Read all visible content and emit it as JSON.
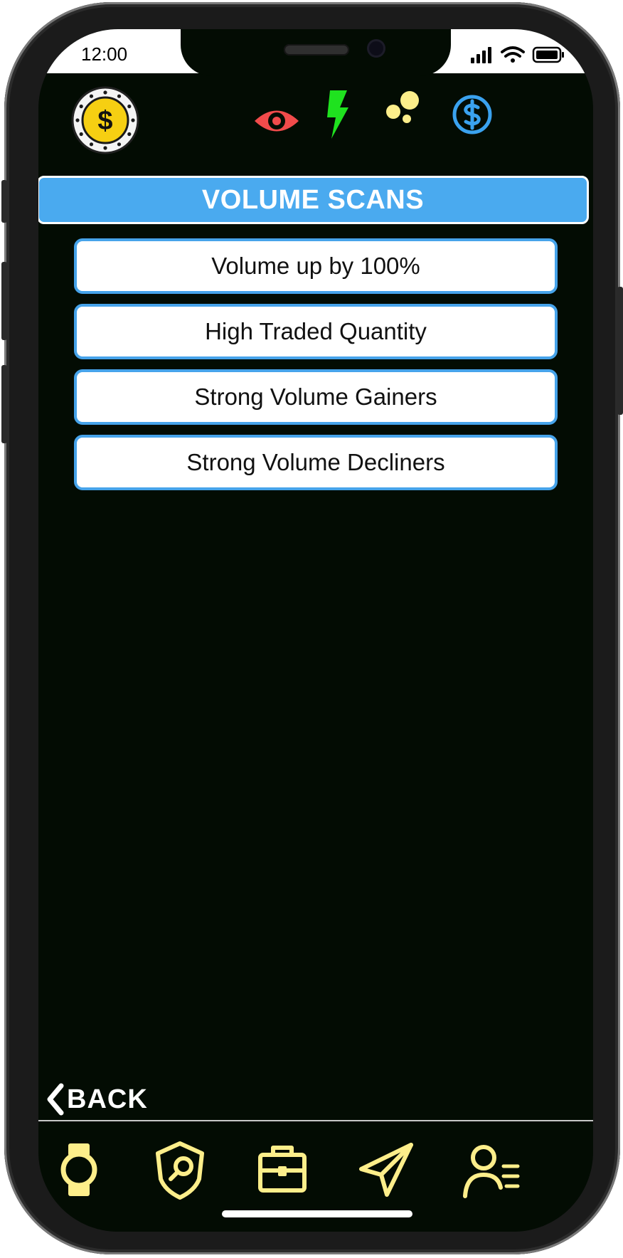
{
  "status_bar": {
    "time": "12:00"
  },
  "header_icons": [
    {
      "name": "coin-logo-icon"
    },
    {
      "name": "eye-icon",
      "color": "#f14b4b"
    },
    {
      "name": "lightning-icon",
      "color": "#1fe21f"
    },
    {
      "name": "bubbles-icon",
      "color": "#fdee8a"
    },
    {
      "name": "dollar-circle-icon",
      "color": "#3aa2ef"
    }
  ],
  "section": {
    "title": "VOLUME SCANS"
  },
  "scans": [
    {
      "label": "Volume up by 100%"
    },
    {
      "label": "High Traded Quantity"
    },
    {
      "label": "Strong Volume Gainers"
    },
    {
      "label": "Strong Volume Decliners"
    }
  ],
  "back": {
    "label": "BACK"
  },
  "bottom_nav": [
    {
      "name": "watch-icon"
    },
    {
      "name": "shield-search-icon"
    },
    {
      "name": "briefcase-icon"
    },
    {
      "name": "send-icon"
    },
    {
      "name": "user-list-icon"
    }
  ],
  "colors": {
    "accent": "#46a3ea",
    "nav_icon": "#fdee8a",
    "background": "#030c03"
  }
}
